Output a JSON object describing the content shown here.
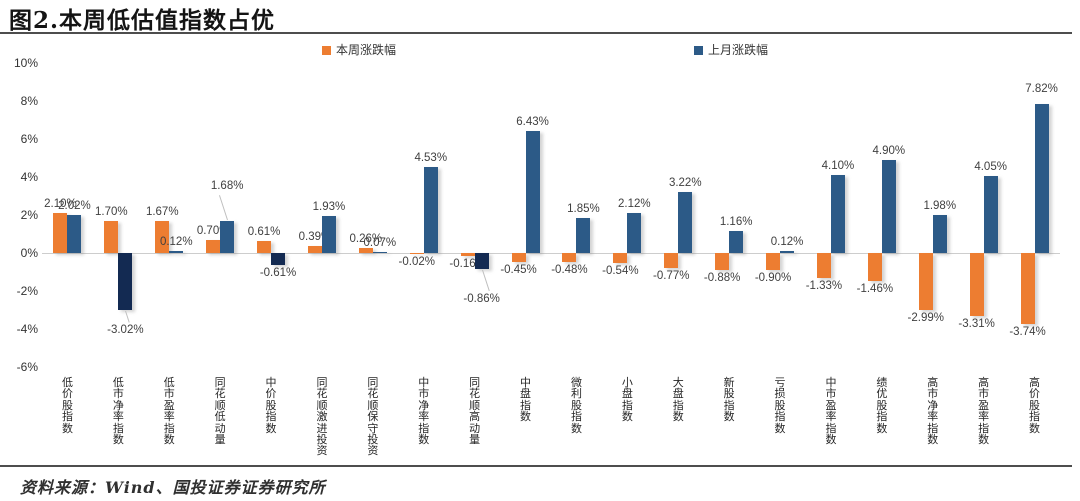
{
  "header": {
    "title": "图2.本周低估值指数占优"
  },
  "footer": {
    "source": "资料来源：Wind、国投证券证券研究所"
  },
  "colors": {
    "week_bar": "#ED7D31",
    "month_bar_positive": "#2C5A87",
    "month_bar_negative": "#132A52",
    "zero_line": "#CDCDCD",
    "rule": "#4D4D4D",
    "value_label": "#404040"
  },
  "y_axis": {
    "ticks": [
      "10%",
      "8%",
      "6%",
      "4%",
      "2%",
      "0%",
      "-2%",
      "-4%",
      "-6%"
    ]
  },
  "chart_data": {
    "type": "bar",
    "title": "图2.本周低估值指数占优",
    "xlabel": "",
    "ylabel": "",
    "y_unit": "%",
    "ylim": [
      -6,
      10
    ],
    "y_tick_step": 2,
    "grid": false,
    "legend_position": "top",
    "value_labels_shown": true,
    "categories": [
      "低价股指数",
      "低市净率指数",
      "低市盈率指数",
      "同花顺低动量",
      "中价股指数",
      "同花顺激进投资",
      "同花顺保守投资",
      "中市净率指数",
      "同花顺高动量",
      "中盘指数",
      "微利股指数",
      "小盘指数",
      "大盘指数",
      "新股指数",
      "亏损股指数",
      "中市盈率指数",
      "绩优股指数",
      "高市净率指数",
      "高市盈率指数",
      "高价股指数"
    ],
    "series": [
      {
        "name": "本周涨跌幅",
        "color": "#ED7D31",
        "values": [
          2.1,
          1.7,
          1.67,
          0.7,
          0.61,
          0.39,
          0.26,
          -0.02,
          -0.16,
          -0.45,
          -0.48,
          -0.54,
          -0.77,
          -0.88,
          -0.9,
          -1.33,
          -1.46,
          -2.99,
          -3.31,
          -3.74
        ]
      },
      {
        "name": "上月涨跌幅",
        "color": "#2C5A87",
        "negative_color": "#132A52",
        "values": [
          2.02,
          -3.02,
          0.12,
          1.68,
          -0.61,
          1.93,
          0.07,
          4.53,
          -0.86,
          6.43,
          1.85,
          2.12,
          3.22,
          1.16,
          0.12,
          4.1,
          4.9,
          1.98,
          4.05,
          7.82
        ],
        "label_dy": [
          0,
          12,
          0,
          26,
          0,
          0,
          0,
          0,
          22,
          0,
          0,
          0,
          0,
          0,
          0,
          0,
          0,
          0,
          0,
          6
        ]
      }
    ]
  }
}
